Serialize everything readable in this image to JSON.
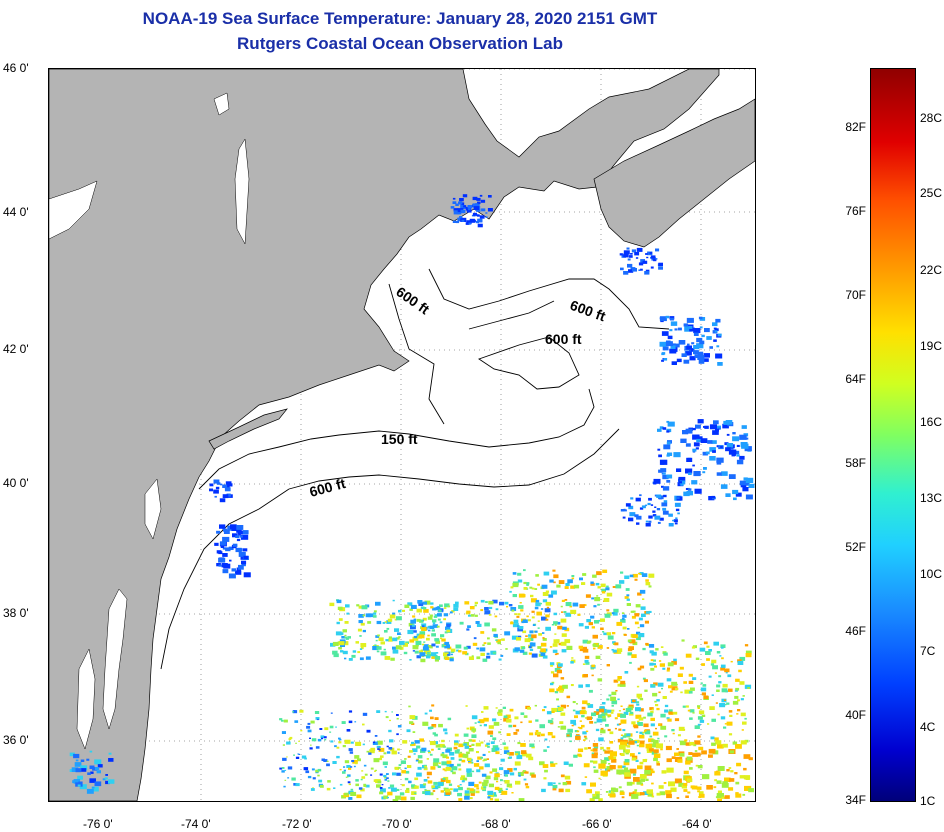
{
  "title": {
    "line1": "NOAA-19 Sea Surface Temperature:  January 28, 2020 2151 GMT",
    "line2": "Rutgers Coastal Ocean Observation Lab"
  },
  "map": {
    "latitude_labels": [
      "46 0'",
      "44 0'",
      "42 0'",
      "40 0'",
      "38 0'",
      "36 0'"
    ],
    "longitude_labels": [
      "-76 0'",
      "-74 0'",
      "-72 0'",
      "-70 0'",
      "-68 0'",
      "-66 0'",
      "-64 0'"
    ],
    "contour_labels": [
      "600 ft",
      "600 ft",
      "600 ft",
      "150 ft",
      "600 ft"
    ],
    "land_color": "#b4b4b4",
    "ocean_no_data_color": "#ffffff"
  },
  "colorbar": {
    "fahrenheit_labels": [
      "82F",
      "76F",
      "70F",
      "64F",
      "58F",
      "52F",
      "46F",
      "40F",
      "34F"
    ],
    "celsius_labels": [
      "28C",
      "25C",
      "22C",
      "19C",
      "16C",
      "13C",
      "10C",
      "7C",
      "4C",
      "1C"
    ]
  }
}
